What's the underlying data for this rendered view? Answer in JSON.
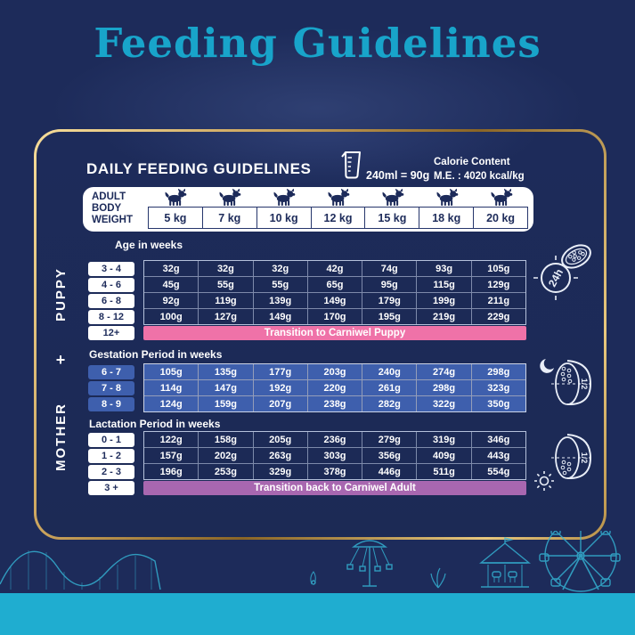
{
  "page": {
    "title": "Feeding Guidelines"
  },
  "panel": {
    "heading": "DAILY FEEDING GUIDELINES",
    "measure_note": "240ml = 90g",
    "calorie_title": "Calorie Content",
    "calorie_value": "M.E. : 4020 kcal/kg",
    "weight_header": {
      "label": "ADULT\nBODY\nWEIGHT",
      "weights": [
        "5 kg",
        "7 kg",
        "10 kg",
        "12 kg",
        "15 kg",
        "18 kg",
        "20 kg"
      ]
    },
    "puppy": {
      "side_label": "PUPPY",
      "axis_label": "Age in weeks",
      "rows": [
        {
          "label": "3 - 4",
          "values": [
            "32g",
            "32g",
            "32g",
            "42g",
            "74g",
            "93g",
            "105g"
          ]
        },
        {
          "label": "4 - 6",
          "values": [
            "45g",
            "55g",
            "55g",
            "65g",
            "95g",
            "115g",
            "129g"
          ]
        },
        {
          "label": "6 - 8",
          "values": [
            "92g",
            "119g",
            "139g",
            "149g",
            "179g",
            "199g",
            "211g"
          ]
        },
        {
          "label": "8 - 12",
          "values": [
            "100g",
            "127g",
            "149g",
            "170g",
            "195g",
            "219g",
            "229g"
          ]
        }
      ],
      "transition": {
        "label": "12+",
        "text": "Transition to Carniwel Puppy"
      },
      "bowl_caption": "24h"
    },
    "plus": "+",
    "mother": {
      "side_label": "MOTHER",
      "gestation": {
        "axis_label": "Gestation Period in weeks",
        "rows": [
          {
            "label": "6 - 7",
            "values": [
              "105g",
              "135g",
              "177g",
              "203g",
              "240g",
              "274g",
              "298g"
            ]
          },
          {
            "label": "7 - 8",
            "values": [
              "114g",
              "147g",
              "192g",
              "220g",
              "261g",
              "298g",
              "323g"
            ]
          },
          {
            "label": "8 - 9",
            "values": [
              "124g",
              "159g",
              "207g",
              "238g",
              "282g",
              "322g",
              "350g"
            ]
          }
        ],
        "bowl_caption": "1/2"
      },
      "lactation": {
        "axis_label": "Lactation Period in weeks",
        "rows": [
          {
            "label": "0 - 1",
            "values": [
              "122g",
              "158g",
              "205g",
              "236g",
              "279g",
              "319g",
              "346g"
            ]
          },
          {
            "label": "1 - 2",
            "values": [
              "157g",
              "202g",
              "263g",
              "303g",
              "356g",
              "409g",
              "443g"
            ]
          },
          {
            "label": "2 - 3",
            "values": [
              "196g",
              "253g",
              "329g",
              "378g",
              "446g",
              "511g",
              "554g"
            ]
          }
        ],
        "transition": {
          "label": "3 +",
          "text": "Transition back to Carniwel Adult"
        },
        "bowl_caption": "1/2"
      }
    }
  },
  "icons": {
    "puppy_schedule": "kibble-bowl-with-24h-clock",
    "gestation_meal": "half-bowl-night-moon",
    "lactation_meal": "half-bowl-day-sun",
    "header": "measuring-cup",
    "weight_columns": "dog-silhouette",
    "background": [
      "rollercoaster",
      "swing-ride",
      "plant",
      "carousel",
      "ferris-wheel"
    ]
  },
  "colors": {
    "background_navy": "#1d2b5a",
    "title_teal": "#18a4ca",
    "gold_border": "#caa35c",
    "table_blue": "#3e5fad",
    "banner_pink": "#ef72a8",
    "banner_purple": "#a867b0",
    "bottom_band_teal": "#1fadd0",
    "text_white": "#ffffff"
  },
  "chart_data": {
    "type": "table",
    "title": "DAILY FEEDING GUIDELINES",
    "columns_label": "ADULT BODY WEIGHT",
    "columns": [
      "5 kg",
      "7 kg",
      "10 kg",
      "12 kg",
      "15 kg",
      "18 kg",
      "20 kg"
    ],
    "sections": [
      {
        "group": "PUPPY",
        "axis": "Age in weeks",
        "rows": [
          {
            "label": "3 - 4",
            "grams": [
              32,
              32,
              32,
              42,
              74,
              93,
              105
            ]
          },
          {
            "label": "4 - 6",
            "grams": [
              45,
              55,
              55,
              65,
              95,
              115,
              129
            ]
          },
          {
            "label": "6 - 8",
            "grams": [
              92,
              119,
              139,
              149,
              179,
              199,
              211
            ]
          },
          {
            "label": "8 - 12",
            "grams": [
              100,
              127,
              149,
              170,
              195,
              219,
              229
            ]
          },
          {
            "label": "12+",
            "note": "Transition to Carniwel Puppy"
          }
        ]
      },
      {
        "group": "MOTHER",
        "axis": "Gestation Period in weeks",
        "rows": [
          {
            "label": "6 - 7",
            "grams": [
              105,
              135,
              177,
              203,
              240,
              274,
              298
            ]
          },
          {
            "label": "7 - 8",
            "grams": [
              114,
              147,
              192,
              220,
              261,
              298,
              323
            ]
          },
          {
            "label": "8 - 9",
            "grams": [
              124,
              159,
              207,
              238,
              282,
              322,
              350
            ]
          }
        ]
      },
      {
        "group": "MOTHER",
        "axis": "Lactation Period in weeks",
        "rows": [
          {
            "label": "0 - 1",
            "grams": [
              122,
              158,
              205,
              236,
              279,
              319,
              346
            ]
          },
          {
            "label": "1 - 2",
            "grams": [
              157,
              202,
              263,
              303,
              356,
              409,
              443
            ]
          },
          {
            "label": "2 - 3",
            "grams": [
              196,
              253,
              329,
              378,
              446,
              511,
              554
            ]
          },
          {
            "label": "3 +",
            "note": "Transition back to Carniwel Adult"
          }
        ]
      }
    ],
    "footnotes": [
      "240ml = 90g",
      "Calorie Content M.E. : 4020 kcal/kg"
    ]
  }
}
